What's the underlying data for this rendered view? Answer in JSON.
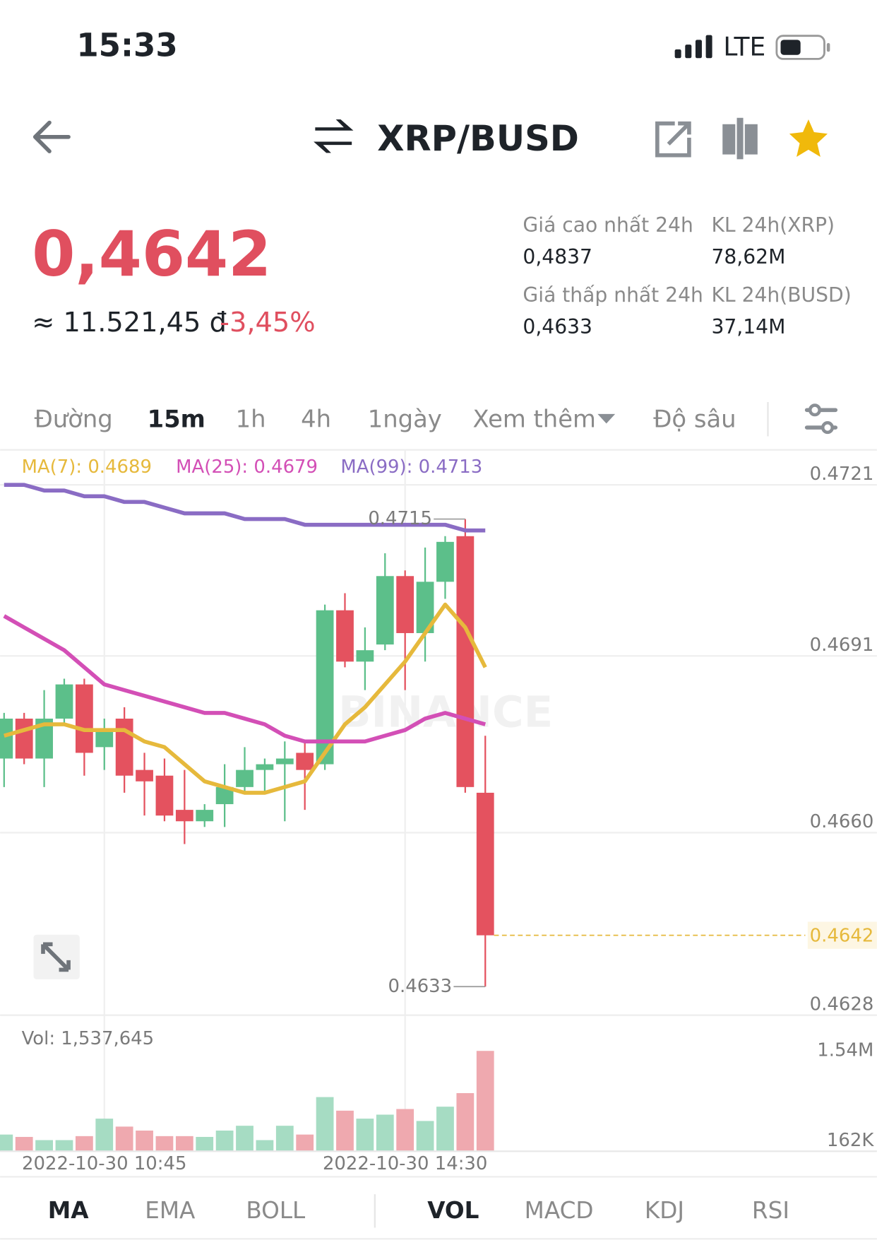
{
  "status_bar": {
    "time": "15:33",
    "network": "LTE"
  },
  "header": {
    "title": "XRP/BUSD"
  },
  "ticker": {
    "price": "0,4642",
    "fiat": "≈ 11.521,45 đ",
    "change": "-3,45%",
    "stats": [
      {
        "label": "Giá cao nhất 24h",
        "value": "0,4837"
      },
      {
        "label": "KL 24h(XRP)",
        "value": "78,62M"
      },
      {
        "label": "Giá thấp nhất 24h",
        "value": "0,4633"
      },
      {
        "label": "KL 24h(BUSD)",
        "value": "37,14M"
      }
    ]
  },
  "timeframes": [
    "Đường",
    "15m",
    "1h",
    "4h",
    "1ngày",
    "Xem thêm",
    "Độ sâu"
  ],
  "indicator_tabs": [
    "MA",
    "EMA",
    "BOLL",
    "VOL",
    "MACD",
    "KDJ",
    "RSI"
  ],
  "chart_data": [
    {
      "type": "candlestick",
      "watermark": "BINANCE",
      "grid": true,
      "categories": [
        null,
        null,
        null,
        null,
        null,
        "2022-10-30 10:45",
        null,
        null,
        null,
        null,
        null,
        null,
        null,
        null,
        null,
        null,
        null,
        null,
        null,
        null,
        "2022-10-30 14:30",
        null,
        null,
        null,
        null
      ],
      "open": [
        0.4673,
        0.468,
        0.4673,
        0.468,
        0.4686,
        0.4675,
        0.468,
        0.4671,
        0.467,
        0.4664,
        0.4662,
        0.4665,
        0.4668,
        0.4671,
        0.4672,
        0.4674,
        0.4672,
        0.4699,
        0.469,
        0.4693,
        0.4705,
        0.4695,
        0.4704,
        0.4712,
        0.4667
      ],
      "high": [
        0.4681,
        0.4681,
        0.4685,
        0.4687,
        0.4687,
        0.468,
        0.4682,
        0.4674,
        0.4673,
        0.4671,
        0.4665,
        0.4672,
        0.4675,
        0.4673,
        0.4676,
        0.4676,
        0.47,
        0.4702,
        0.4696,
        0.4709,
        0.4706,
        0.471,
        0.4712,
        0.4715,
        0.4677
      ],
      "low": [
        0.4668,
        0.4672,
        0.4668,
        0.4679,
        0.467,
        0.4671,
        0.4667,
        0.4663,
        0.4662,
        0.4658,
        0.4661,
        0.4661,
        0.4667,
        0.4667,
        0.4662,
        0.4664,
        0.4671,
        0.4689,
        0.4685,
        0.4692,
        0.4685,
        0.469,
        0.4701,
        0.4667,
        0.4633
      ],
      "close": [
        0.468,
        0.4673,
        0.468,
        0.4686,
        0.4674,
        0.4678,
        0.467,
        0.4669,
        0.4663,
        0.4662,
        0.4664,
        0.4668,
        0.4671,
        0.4672,
        0.4673,
        0.4671,
        0.4699,
        0.469,
        0.4692,
        0.4705,
        0.4695,
        0.4704,
        0.4711,
        0.4668,
        0.4642
      ],
      "up_color": "#5cbf8a",
      "down_color": "#e4525f",
      "series": [
        {
          "name": "MA(7): 0.4689",
          "color": "#e6b93c",
          "values": [
            0.4677,
            0.4678,
            0.4679,
            0.4679,
            0.4678,
            0.4678,
            0.4678,
            0.4676,
            0.4675,
            0.4672,
            0.4669,
            0.4668,
            0.4667,
            0.4667,
            0.4668,
            0.4669,
            0.4674,
            0.4679,
            0.4682,
            0.4686,
            0.469,
            0.4695,
            0.47,
            0.4696,
            0.4689
          ]
        },
        {
          "name": "MA(25): 0.4679",
          "color": "#d34fb6",
          "values": [
            0.4698,
            0.4696,
            0.4694,
            0.4692,
            0.4689,
            0.4686,
            0.4685,
            0.4684,
            0.4683,
            0.4682,
            0.4681,
            0.4681,
            0.468,
            0.4679,
            0.4677,
            0.4676,
            0.4676,
            0.4676,
            0.4676,
            0.4677,
            0.4678,
            0.468,
            0.4681,
            0.468,
            0.4679
          ]
        },
        {
          "name": "MA(99): 0.4713",
          "color": "#8a6cc4",
          "values": [
            0.4721,
            0.4721,
            0.472,
            0.472,
            0.4719,
            0.4719,
            0.4718,
            0.4718,
            0.4717,
            0.4716,
            0.4716,
            0.4716,
            0.4715,
            0.4715,
            0.4715,
            0.4714,
            0.4714,
            0.4714,
            0.4714,
            0.4714,
            0.4714,
            0.4714,
            0.4714,
            0.4713,
            0.4713
          ]
        }
      ],
      "ylim": [
        0.4628,
        0.4727
      ],
      "yticks": [
        0.4721,
        0.4691,
        {
          "value": 0.466,
          "label": "0.4660"
        },
        0.4628
      ],
      "annotations": [
        0.4715,
        0.4633
      ],
      "current_price": 0.4642,
      "current_price_color": "#e6b93c"
    },
    {
      "type": "bar",
      "title": "Vol: 1,537,645",
      "values": [
        256000,
        220000,
        171000,
        171000,
        232000,
        500000,
        378000,
        317000,
        232000,
        232000,
        220000,
        317000,
        391000,
        171000,
        391000,
        256000,
        830000,
        622000,
        500000,
        561000,
        647000,
        464000,
        683000,
        891000,
        1537645
      ],
      "up_color": "#a6dcc3",
      "down_color": "#efa9af",
      "ylim": [
        0,
        2000000
      ],
      "yticks": [
        {
          "value": 1540000,
          "label": "1.54M"
        },
        {
          "value": 162000,
          "label": "162K"
        }
      ]
    }
  ]
}
